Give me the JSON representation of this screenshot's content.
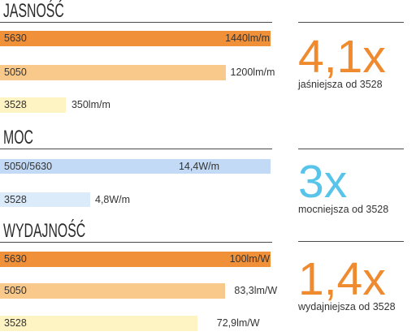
{
  "chart_data": [
    {
      "type": "bar",
      "orientation": "horizontal",
      "title": "JASNOŚĆ",
      "categories": [
        "5630",
        "5050",
        "3528"
      ],
      "values": [
        1440,
        1200,
        350
      ],
      "value_labels": [
        "1440lm/m",
        "1200lm/m",
        "350lm/m"
      ],
      "colors": [
        "#F0913A",
        "#F9C98B",
        "#FEF3C3"
      ],
      "xlim": [
        0,
        1440
      ],
      "grid": false,
      "callout": {
        "value": "4,1x",
        "text": "jaśniejsza od 3528",
        "color": "#EF8A2F"
      }
    },
    {
      "type": "bar",
      "orientation": "horizontal",
      "title": "MOC",
      "categories": [
        "5050/5630",
        "3528"
      ],
      "values": [
        14.4,
        4.8
      ],
      "value_labels": [
        "14,4W/m",
        "4,8W/m"
      ],
      "colors": [
        "#C2DAF5",
        "#DCEBFA"
      ],
      "xlim": [
        0,
        14.4
      ],
      "grid": false,
      "callout": {
        "value": "3x",
        "text": "mocniejsza od 3528",
        "color": "#58C4EA"
      }
    },
    {
      "type": "bar",
      "orientation": "horizontal",
      "title": "WYDAJNOŚĆ",
      "categories": [
        "5630",
        "5050",
        "3528"
      ],
      "values": [
        100,
        83.3,
        72.9
      ],
      "value_labels": [
        "100lm/W",
        "83,3lm/W",
        "72,9lm/W"
      ],
      "colors": [
        "#F0913A",
        "#F9C98B",
        "#FEF3C3"
      ],
      "xlim": [
        0,
        100
      ],
      "grid": false,
      "callout": {
        "value": "1,4x",
        "text": "wydajniejsza od 3528",
        "color": "#EF8A2F"
      }
    }
  ]
}
